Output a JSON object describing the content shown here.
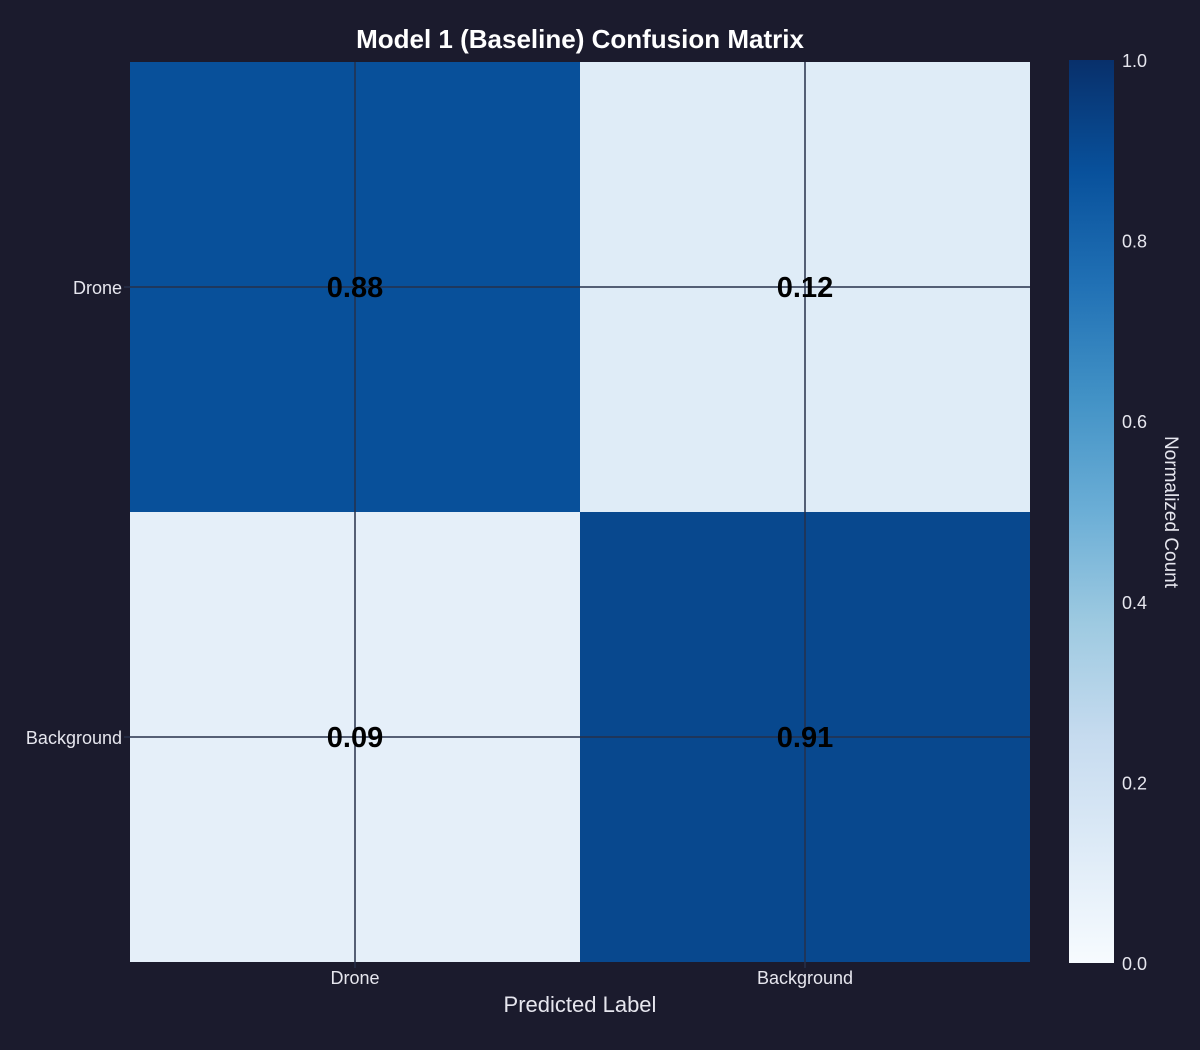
{
  "chart_data": {
    "type": "heatmap",
    "title": "Model 1 (Baseline) Confusion Matrix",
    "xlabel": "Predicted Label",
    "ylabel": "",
    "x_categories": [
      "Drone",
      "Background"
    ],
    "y_categories": [
      "Drone",
      "Background"
    ],
    "values": [
      [
        0.88,
        0.12
      ],
      [
        0.09,
        0.91
      ]
    ],
    "value_labels": [
      [
        "0.88",
        "0.12"
      ],
      [
        "0.09",
        "0.91"
      ]
    ],
    "colormap": "Blues",
    "colorbar": {
      "label": "Normalized Count",
      "range": [
        0.0,
        1.0
      ],
      "ticks": [
        "0.0",
        "0.2",
        "0.4",
        "0.6",
        "0.8",
        "1.0"
      ]
    },
    "grid": true,
    "colors": {
      "background": "#1b1b2d",
      "text": "#e6e6ee",
      "cell_text": "#000000"
    }
  }
}
